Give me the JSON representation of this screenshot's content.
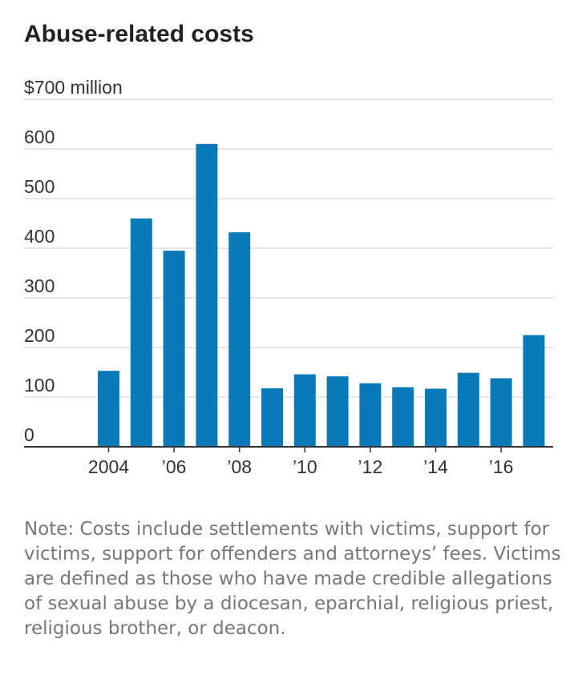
{
  "chart_data": {
    "type": "bar",
    "title": "Abuse-related costs",
    "ylabel": "$700 million",
    "ylim": [
      0,
      700
    ],
    "yticks": [
      {
        "value": 700,
        "label": "$700 million"
      },
      {
        "value": 600,
        "label": "600"
      },
      {
        "value": 500,
        "label": "500"
      },
      {
        "value": 400,
        "label": "400"
      },
      {
        "value": 300,
        "label": "300"
      },
      {
        "value": 200,
        "label": "200"
      },
      {
        "value": 100,
        "label": "100"
      },
      {
        "value": 0,
        "label": "0"
      }
    ],
    "categories": [
      "2004",
      "2005",
      "2006",
      "2007",
      "2008",
      "2009",
      "2010",
      "2011",
      "2012",
      "2013",
      "2014",
      "2015",
      "2016",
      "2017"
    ],
    "values": [
      153,
      460,
      395,
      610,
      432,
      118,
      146,
      142,
      128,
      120,
      117,
      149,
      138,
      225
    ],
    "xtick_labels": [
      {
        "category": "2004",
        "label": "2004"
      },
      {
        "category": "2006",
        "label": "’06"
      },
      {
        "category": "2008",
        "label": "’08"
      },
      {
        "category": "2010",
        "label": "’10"
      },
      {
        "category": "2012",
        "label": "’12"
      },
      {
        "category": "2014",
        "label": "’14"
      },
      {
        "category": "2016",
        "label": "’16"
      }
    ],
    "bar_color": "#0a79b8",
    "grid": true
  },
  "note": "Note: Costs include settlements with victims, support for victims, support for offenders and attorneys’ fees. Victims are defined as those who have made credible allegations of sexual abuse by a diocesan, eparchial, religious priest, religious brother, or deacon."
}
